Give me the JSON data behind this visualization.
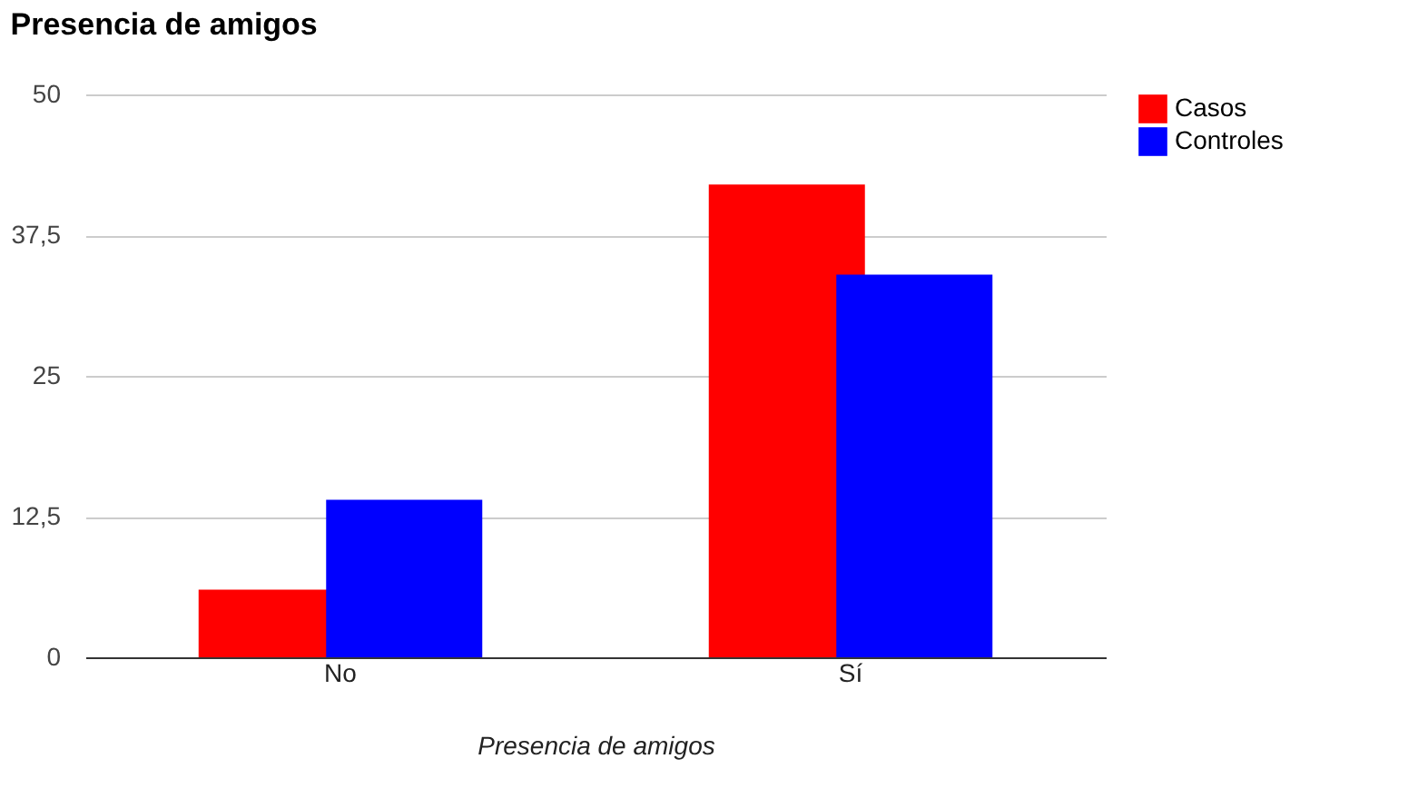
{
  "chart_data": {
    "type": "bar",
    "title": "Presencia de amigos",
    "xlabel": "Presencia de amigos",
    "categories": [
      "No",
      "Sí"
    ],
    "series": [
      {
        "name": "Casos",
        "color": "#ff0000",
        "values": [
          6,
          42
        ]
      },
      {
        "name": "Controles",
        "color": "#0000ff",
        "values": [
          14,
          34
        ]
      }
    ],
    "ylim": [
      0,
      50
    ],
    "yticks": [
      0,
      {
        "value": 12.5,
        "label": "12,5"
      },
      25,
      {
        "value": 37.5,
        "label": "37,5"
      },
      50
    ],
    "grid": "y",
    "legend": "top right"
  }
}
